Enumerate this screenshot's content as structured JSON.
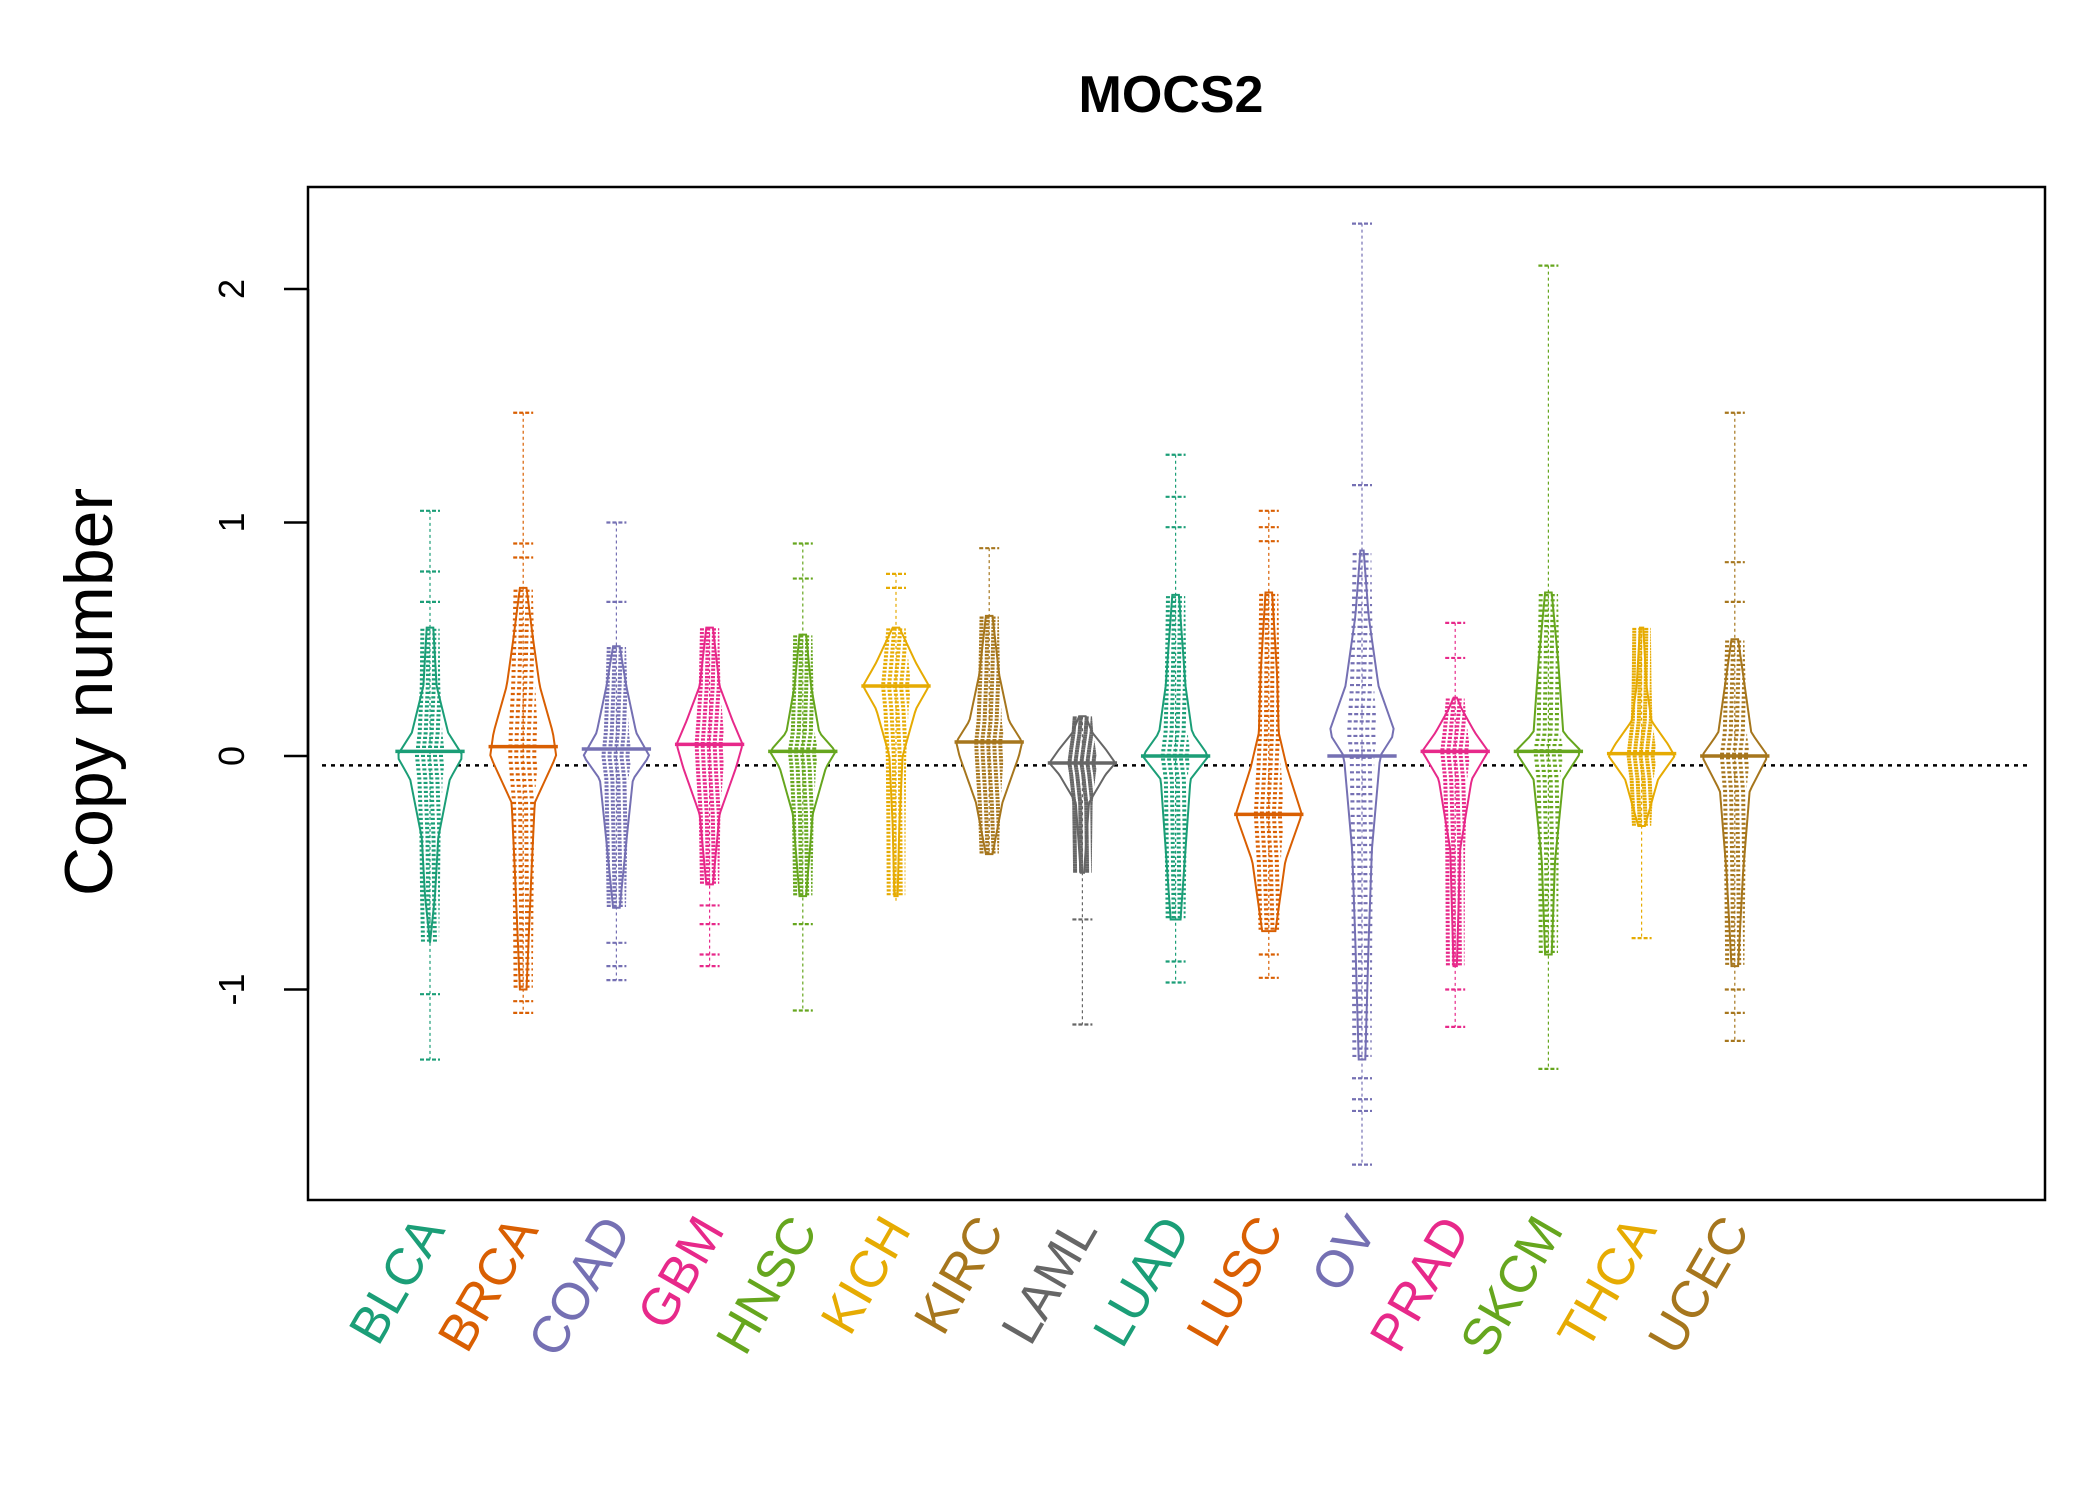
{
  "chart_data": {
    "type": "beanplot",
    "title": "MOCS2",
    "xlabel": "",
    "ylabel": "Copy number",
    "ylim": [
      -1.9,
      2.45
    ],
    "yticks": [
      -1,
      0,
      1,
      2
    ],
    "ytick_labels": [
      "-1",
      "0",
      "1",
      "2"
    ],
    "reference_line": -0.04,
    "grid": false,
    "legend": "none",
    "categories": [
      "BLCA",
      "BRCA",
      "COAD",
      "GBM",
      "HNSC",
      "KICH",
      "KIRC",
      "LAML",
      "LUAD",
      "LUSC",
      "OV",
      "PRAD",
      "SKCM",
      "THCA",
      "UCEC"
    ],
    "colors": [
      "#1B9E77",
      "#D95F02",
      "#7570B3",
      "#E7298A",
      "#66A61E",
      "#E6AB02",
      "#A6761D",
      "#666666",
      "#1B9E77",
      "#D95F02",
      "#7570B3",
      "#E7298A",
      "#66A61E",
      "#E6AB02",
      "#A6761D"
    ],
    "series": [
      {
        "category": "BLCA",
        "min": -1.3,
        "max": 1.05,
        "median": 0.02,
        "outliers": [
          1.05,
          0.79,
          0.66,
          -1.02,
          -1.3
        ],
        "density": [
          [
            -0.8,
            0.0
          ],
          [
            -0.6,
            0.15
          ],
          [
            -0.35,
            0.25
          ],
          [
            -0.1,
            0.6
          ],
          [
            0.0,
            1.0
          ],
          [
            0.1,
            0.55
          ],
          [
            0.3,
            0.2
          ],
          [
            0.55,
            0.1
          ]
        ]
      },
      {
        "category": "BRCA",
        "min": -1.1,
        "max": 1.47,
        "median": 0.04,
        "outliers": [
          1.47,
          0.91,
          0.85,
          -1.05,
          -1.1
        ],
        "density": [
          [
            -1.0,
            0.1
          ],
          [
            -0.5,
            0.25
          ],
          [
            -0.2,
            0.35
          ],
          [
            0.0,
            1.0
          ],
          [
            0.1,
            0.9
          ],
          [
            0.3,
            0.5
          ],
          [
            0.5,
            0.3
          ],
          [
            0.72,
            0.1
          ]
        ]
      },
      {
        "category": "COAD",
        "min": -0.96,
        "max": 1.0,
        "median": 0.03,
        "outliers": [
          1.0,
          0.66,
          -0.8,
          -0.9,
          -0.96
        ],
        "density": [
          [
            -0.65,
            0.1
          ],
          [
            -0.3,
            0.35
          ],
          [
            -0.1,
            0.5
          ],
          [
            0.0,
            1.0
          ],
          [
            0.1,
            0.6
          ],
          [
            0.3,
            0.3
          ],
          [
            0.47,
            0.1
          ]
        ]
      },
      {
        "category": "GBM",
        "min": -0.9,
        "max": 0.55,
        "median": 0.05,
        "outliers": [
          -0.64,
          -0.72,
          -0.85,
          -0.9
        ],
        "density": [
          [
            -0.55,
            0.1
          ],
          [
            -0.25,
            0.3
          ],
          [
            -0.05,
            0.8
          ],
          [
            0.05,
            1.0
          ],
          [
            0.15,
            0.7
          ],
          [
            0.3,
            0.3
          ],
          [
            0.55,
            0.1
          ]
        ]
      },
      {
        "category": "HNSC",
        "min": -1.09,
        "max": 0.91,
        "median": 0.02,
        "outliers": [
          0.91,
          0.76,
          -0.72,
          -1.09
        ],
        "density": [
          [
            -0.6,
            0.1
          ],
          [
            -0.25,
            0.3
          ],
          [
            -0.05,
            0.7
          ],
          [
            0.02,
            1.0
          ],
          [
            0.1,
            0.5
          ],
          [
            0.3,
            0.25
          ],
          [
            0.52,
            0.1
          ]
        ]
      },
      {
        "category": "KICH",
        "min": -0.62,
        "max": 0.78,
        "median": 0.3,
        "outliers": [
          0.78,
          0.72
        ],
        "density": [
          [
            -0.6,
            0.05
          ],
          [
            -0.3,
            0.1
          ],
          [
            0.0,
            0.2
          ],
          [
            0.2,
            0.6
          ],
          [
            0.3,
            1.0
          ],
          [
            0.4,
            0.6
          ],
          [
            0.55,
            0.1
          ]
        ]
      },
      {
        "category": "KIRC",
        "min": -0.42,
        "max": 0.89,
        "median": 0.06,
        "outliers": [
          0.89
        ],
        "density": [
          [
            -0.42,
            0.1
          ],
          [
            -0.2,
            0.4
          ],
          [
            0.0,
            0.9
          ],
          [
            0.06,
            1.0
          ],
          [
            0.15,
            0.6
          ],
          [
            0.35,
            0.3
          ],
          [
            0.6,
            0.1
          ]
        ]
      },
      {
        "category": "LAML",
        "min": -1.15,
        "max": 0.17,
        "median": -0.03,
        "outliers": [
          -0.7,
          -1.15
        ],
        "density": [
          [
            -0.5,
            0.05
          ],
          [
            -0.2,
            0.2
          ],
          [
            -0.08,
            0.7
          ],
          [
            -0.03,
            1.0
          ],
          [
            0.03,
            0.7
          ],
          [
            0.1,
            0.3
          ],
          [
            0.17,
            0.1
          ]
        ]
      },
      {
        "category": "LUAD",
        "min": -0.97,
        "max": 1.29,
        "median": 0.0,
        "outliers": [
          1.29,
          1.11,
          0.98,
          -0.88,
          -0.97
        ],
        "density": [
          [
            -0.7,
            0.15
          ],
          [
            -0.4,
            0.3
          ],
          [
            -0.1,
            0.45
          ],
          [
            0.0,
            1.0
          ],
          [
            0.1,
            0.5
          ],
          [
            0.3,
            0.3
          ],
          [
            0.69,
            0.1
          ]
        ]
      },
      {
        "category": "LUSC",
        "min": -0.95,
        "max": 1.05,
        "median": -0.25,
        "outliers": [
          1.05,
          0.98,
          0.92,
          -0.85,
          -0.95
        ],
        "density": [
          [
            -0.75,
            0.2
          ],
          [
            -0.45,
            0.5
          ],
          [
            -0.25,
            1.0
          ],
          [
            -0.05,
            0.55
          ],
          [
            0.1,
            0.3
          ],
          [
            0.35,
            0.25
          ],
          [
            0.7,
            0.1
          ]
        ]
      },
      {
        "category": "OV",
        "min": -1.75,
        "max": 2.28,
        "median": 0.0,
        "outliers": [
          2.28,
          1.16,
          -1.38,
          -1.47,
          -1.52,
          -1.75
        ],
        "density": [
          [
            -1.3,
            0.1
          ],
          [
            -0.8,
            0.2
          ],
          [
            -0.4,
            0.3
          ],
          [
            0.0,
            0.55
          ],
          [
            0.1,
            1.0
          ],
          [
            0.3,
            0.5
          ],
          [
            0.6,
            0.2
          ],
          [
            0.88,
            0.05
          ]
        ]
      },
      {
        "category": "PRAD",
        "min": -1.16,
        "max": 0.57,
        "median": 0.02,
        "outliers": [
          0.57,
          0.42,
          -1.0,
          -1.16
        ],
        "density": [
          [
            -0.9,
            0.05
          ],
          [
            -0.4,
            0.15
          ],
          [
            -0.1,
            0.5
          ],
          [
            0.02,
            1.0
          ],
          [
            0.1,
            0.6
          ],
          [
            0.2,
            0.2
          ],
          [
            0.25,
            0.05
          ]
        ]
      },
      {
        "category": "SKCM",
        "min": -1.34,
        "max": 2.1,
        "median": 0.02,
        "outliers": [
          2.1,
          -1.34
        ],
        "density": [
          [
            -0.85,
            0.1
          ],
          [
            -0.45,
            0.2
          ],
          [
            -0.1,
            0.45
          ],
          [
            0.02,
            1.0
          ],
          [
            0.1,
            0.45
          ],
          [
            0.4,
            0.3
          ],
          [
            0.7,
            0.1
          ]
        ]
      },
      {
        "category": "THCA",
        "min": -0.78,
        "max": 0.55,
        "median": 0.01,
        "outliers": [
          -0.78
        ],
        "density": [
          [
            -0.3,
            0.1
          ],
          [
            -0.1,
            0.5
          ],
          [
            0.0,
            1.0
          ],
          [
            0.05,
            0.8
          ],
          [
            0.15,
            0.3
          ],
          [
            0.3,
            0.15
          ],
          [
            0.55,
            0.05
          ]
        ]
      },
      {
        "category": "UCEC",
        "min": -1.22,
        "max": 1.47,
        "median": 0.0,
        "outliers": [
          1.47,
          0.83,
          0.66,
          -1.0,
          -1.1,
          -1.22
        ],
        "density": [
          [
            -0.9,
            0.1
          ],
          [
            -0.5,
            0.25
          ],
          [
            -0.15,
            0.45
          ],
          [
            0.0,
            1.0
          ],
          [
            0.1,
            0.5
          ],
          [
            0.3,
            0.3
          ],
          [
            0.5,
            0.1
          ]
        ]
      }
    ]
  }
}
